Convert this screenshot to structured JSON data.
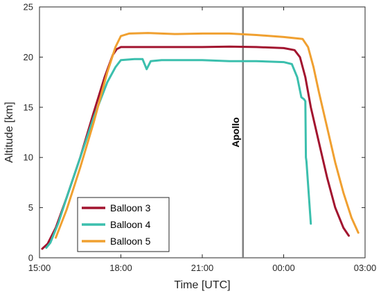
{
  "chart_data": {
    "type": "line",
    "xlabel": "Time [UTC]",
    "ylabel": "Altitude [km]",
    "xlim": [
      15,
      27
    ],
    "ylim": [
      0,
      25
    ],
    "x_ticks": [
      {
        "value": 15,
        "label": "15:00"
      },
      {
        "value": 18,
        "label": "18:00"
      },
      {
        "value": 21,
        "label": "21:00"
      },
      {
        "value": 24,
        "label": "00:00"
      },
      {
        "value": 27,
        "label": "03:00"
      }
    ],
    "y_ticks": [
      {
        "value": 0,
        "label": "0"
      },
      {
        "value": 5,
        "label": "5"
      },
      {
        "value": 10,
        "label": "10"
      },
      {
        "value": 15,
        "label": "15"
      },
      {
        "value": 20,
        "label": "20"
      },
      {
        "value": 25,
        "label": "25"
      }
    ],
    "grid": false,
    "legend_position": "bottom-left",
    "annotations": [
      {
        "type": "vline",
        "x": 22.5,
        "label": "Apollo",
        "label_y": 12.5,
        "color": "#7f7f7f"
      }
    ],
    "series": [
      {
        "name": "Balloon 3",
        "color": "#a2142f",
        "points": [
          [
            15.1,
            0.9
          ],
          [
            15.3,
            1.4
          ],
          [
            15.6,
            3.0
          ],
          [
            16.0,
            6.0
          ],
          [
            16.5,
            10.0
          ],
          [
            17.0,
            14.5
          ],
          [
            17.4,
            18.0
          ],
          [
            17.7,
            20.2
          ],
          [
            17.85,
            20.8
          ],
          [
            18.0,
            21.0
          ],
          [
            19.0,
            21.0
          ],
          [
            20.0,
            21.0
          ],
          [
            21.0,
            21.0
          ],
          [
            22.0,
            21.05
          ],
          [
            23.0,
            21.0
          ],
          [
            24.0,
            20.9
          ],
          [
            24.4,
            20.7
          ],
          [
            24.6,
            20.0
          ],
          [
            24.8,
            18.0
          ],
          [
            25.0,
            15.0
          ],
          [
            25.3,
            11.5
          ],
          [
            25.6,
            8.0
          ],
          [
            25.9,
            5.0
          ],
          [
            26.2,
            3.0
          ],
          [
            26.4,
            2.2
          ]
        ]
      },
      {
        "name": "Balloon 4",
        "color": "#3bbfad",
        "points": [
          [
            15.25,
            1.0
          ],
          [
            15.4,
            1.5
          ],
          [
            15.7,
            3.5
          ],
          [
            16.0,
            6.0
          ],
          [
            16.5,
            10.0
          ],
          [
            17.0,
            14.0
          ],
          [
            17.5,
            17.5
          ],
          [
            17.8,
            19.0
          ],
          [
            18.0,
            19.7
          ],
          [
            18.5,
            19.8
          ],
          [
            18.8,
            19.8
          ],
          [
            18.95,
            18.8
          ],
          [
            19.1,
            19.6
          ],
          [
            19.5,
            19.7
          ],
          [
            21.0,
            19.7
          ],
          [
            22.0,
            19.6
          ],
          [
            23.0,
            19.6
          ],
          [
            24.0,
            19.5
          ],
          [
            24.3,
            19.3
          ],
          [
            24.5,
            18.0
          ],
          [
            24.65,
            16.0
          ],
          [
            24.75,
            15.8
          ],
          [
            24.8,
            15.6
          ],
          [
            24.82,
            10.0
          ],
          [
            24.84,
            9.6
          ],
          [
            25.0,
            3.4
          ]
        ]
      },
      {
        "name": "Balloon 5",
        "color": "#f0a030",
        "points": [
          [
            15.6,
            2.0
          ],
          [
            16.0,
            4.8
          ],
          [
            16.5,
            9.0
          ],
          [
            17.0,
            13.5
          ],
          [
            17.5,
            18.5
          ],
          [
            17.8,
            21.0
          ],
          [
            18.0,
            22.1
          ],
          [
            18.3,
            22.35
          ],
          [
            19.0,
            22.4
          ],
          [
            20.0,
            22.3
          ],
          [
            21.0,
            22.35
          ],
          [
            22.0,
            22.35
          ],
          [
            23.0,
            22.2
          ],
          [
            24.0,
            22.0
          ],
          [
            24.7,
            21.8
          ],
          [
            24.9,
            21.0
          ],
          [
            25.1,
            19.0
          ],
          [
            25.3,
            16.5
          ],
          [
            25.6,
            13.0
          ],
          [
            25.9,
            9.5
          ],
          [
            26.2,
            6.5
          ],
          [
            26.5,
            4.0
          ],
          [
            26.75,
            2.5
          ]
        ]
      }
    ]
  }
}
